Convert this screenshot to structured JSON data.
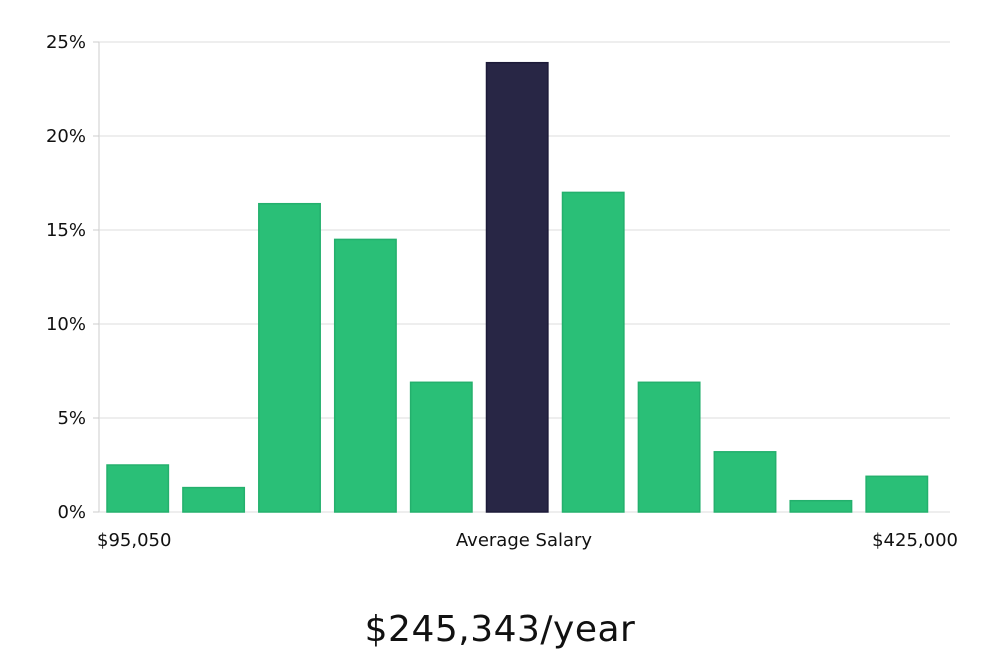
{
  "chart_data": {
    "type": "bar",
    "categories": [
      "1",
      "2",
      "3",
      "4",
      "5",
      "6",
      "7",
      "8",
      "9",
      "10",
      "11"
    ],
    "values": [
      2.5,
      1.3,
      16.4,
      14.5,
      6.9,
      23.9,
      17.0,
      6.9,
      3.2,
      0.6,
      1.9
    ],
    "highlight_index": 5,
    "ylim": [
      0,
      25
    ],
    "yticks": [
      0,
      5,
      10,
      15,
      20,
      25
    ],
    "ytick_labels": [
      "0%",
      "5%",
      "10%",
      "15%",
      "20%",
      "25%"
    ],
    "x_labels": {
      "min": "$95,050",
      "center": "Average Salary",
      "max": "$425,000"
    },
    "grid": true,
    "colors": {
      "bar": "#2abf77",
      "highlight": "#282645",
      "grid": "#dddddd",
      "axis": "#cccccc"
    }
  },
  "summary": {
    "average_salary": "$245,343/year"
  }
}
